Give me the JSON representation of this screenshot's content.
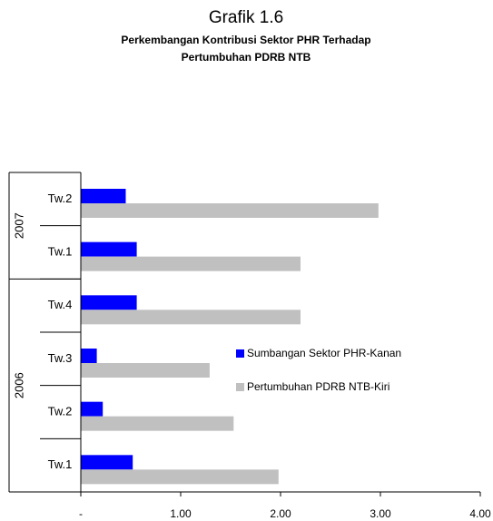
{
  "chart_data": {
    "type": "hbar",
    "title": "Grafik 1.6",
    "subtitle": [
      "Perkembangan Kontribusi Sektor PHR Terhadap",
      "Pertumbuhan PDRB NTB"
    ],
    "category_groups": [
      {
        "name": "2006",
        "categories": [
          "Tw.1",
          "Tw.2",
          "Tw.3",
          "Tw.4"
        ]
      },
      {
        "name": "2007",
        "categories": [
          "Tw.1",
          "Tw.2"
        ]
      }
    ],
    "series": [
      {
        "name": "Sumbangan Sektor PHR-Kanan",
        "color": "#0000ff",
        "values": [
          0.52,
          0.22,
          0.16,
          0.56,
          0.56,
          0.45
        ]
      },
      {
        "name": "Pertumbuhan PDRB NTB-Kiri",
        "color": "#c0c0c0",
        "values": [
          1.98,
          1.53,
          1.29,
          2.2,
          2.2,
          2.98
        ]
      }
    ],
    "xlim": [
      0,
      4
    ],
    "xticks": [
      {
        "value": 0,
        "label": "-"
      },
      {
        "value": 1,
        "label": "1.00"
      },
      {
        "value": 2,
        "label": "2.00"
      },
      {
        "value": 3,
        "label": "3.00"
      },
      {
        "value": 4,
        "label": "4.00"
      }
    ]
  }
}
